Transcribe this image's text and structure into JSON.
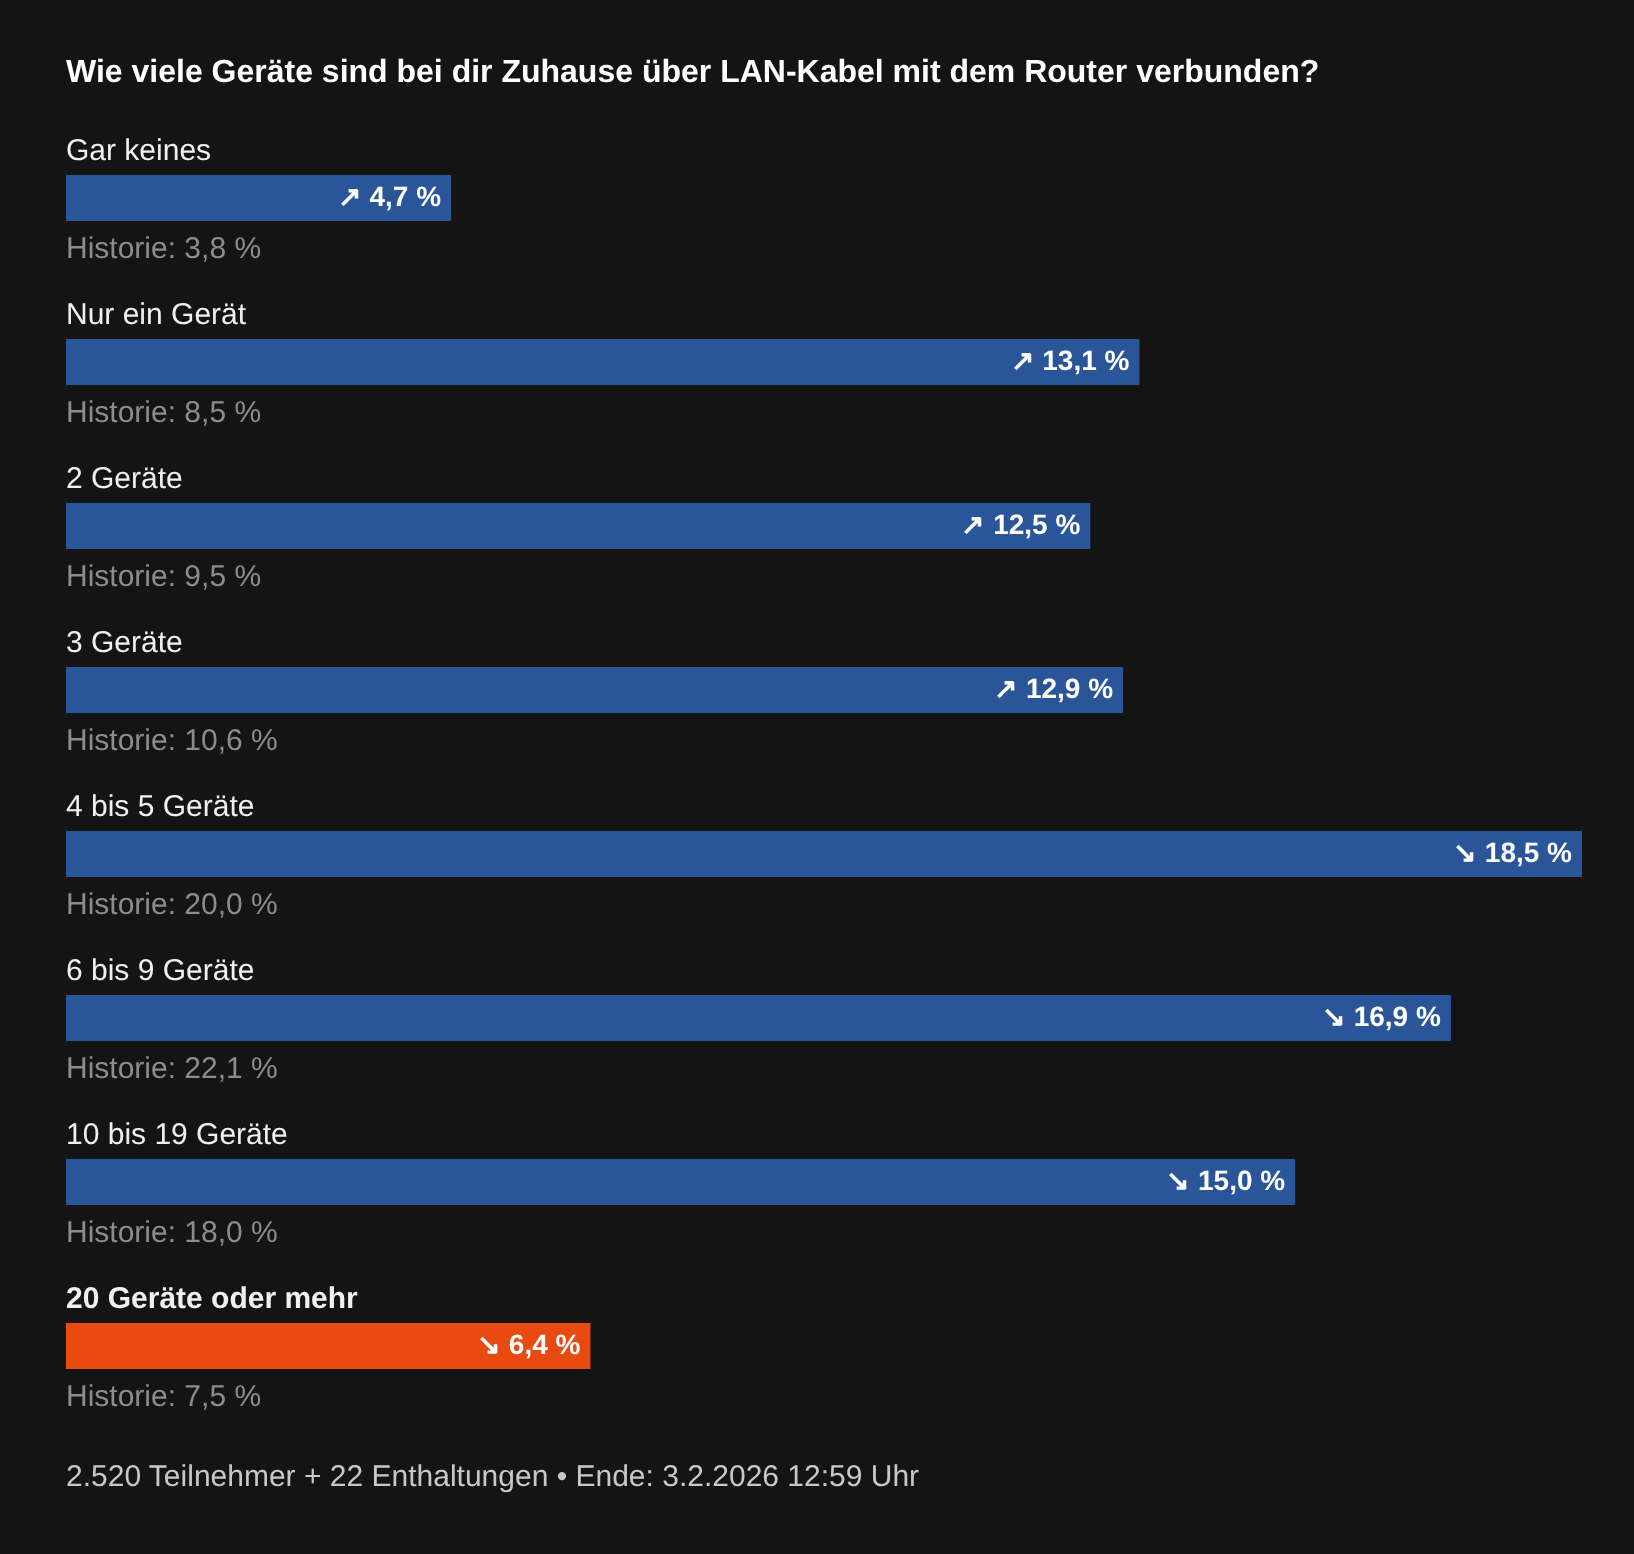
{
  "chart_data": {
    "type": "bar",
    "orientation": "horizontal",
    "title": "Wie viele Geräte sind bei dir Zuhause über LAN-Kabel mit dem Router verbunden?",
    "categories": [
      "Gar keines",
      "Nur ein Gerät",
      "2 Geräte",
      "3 Geräte",
      "4 bis 5 Geräte",
      "6 bis 9 Geräte",
      "10 bis 19 Geräte",
      "20 Geräte oder mehr"
    ],
    "values": [
      4.7,
      13.1,
      12.5,
      12.9,
      18.5,
      16.9,
      15.0,
      6.4
    ],
    "colors": [
      "#2a5699",
      "#2a5699",
      "#2a5699",
      "#2a5699",
      "#2a5699",
      "#2a5699",
      "#2a5699",
      "#e84a10"
    ],
    "value_labels": [
      "↗ 4,7 %",
      "↗ 13,1 %",
      "↗ 12,5 %",
      "↗ 12,9 %",
      "↘ 18,5 %",
      "↘ 16,9 %",
      "↘ 15,0 %",
      "↘ 6,4 %"
    ],
    "xlim": [
      0,
      18.5
    ],
    "tick_labels": false,
    "annotations": [
      {
        "text": "Historie: 3,8 %",
        "y": "Gar keines"
      },
      {
        "text": "Historie: 8,5 %",
        "y": "Nur ein Gerät"
      },
      {
        "text": "Historie: 9,5 %",
        "y": "2 Geräte"
      },
      {
        "text": "Historie: 10,6 %",
        "y": "3 Geräte"
      },
      {
        "text": "Historie: 20,0 %",
        "y": "4 bis 5 Geräte"
      },
      {
        "text": "Historie: 22,1 %",
        "y": "6 bis 9 Geräte"
      },
      {
        "text": "Historie: 18,0 %",
        "y": "10 bis 19 Geräte"
      },
      {
        "text": "Historie: 7,5 %",
        "y": "20 Geräte oder mehr"
      },
      "2.520 Teilnehmer  +  22 Enthaltungen  •  Ende: 3.2.2026 12:59 Uhr"
    ]
  }
}
